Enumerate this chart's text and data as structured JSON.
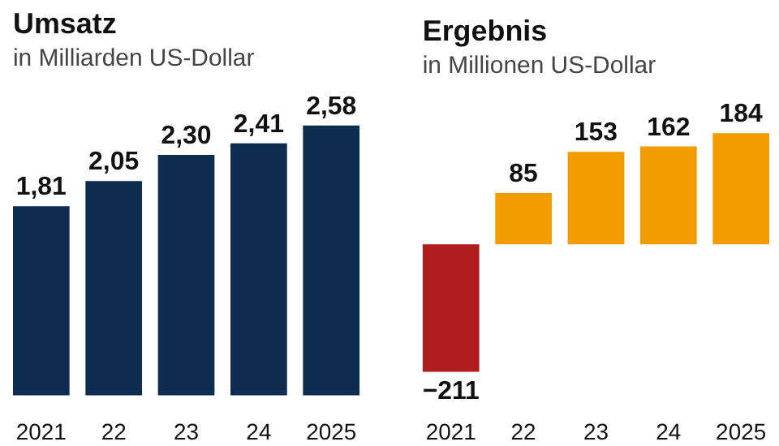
{
  "chart_data": [
    {
      "type": "bar",
      "title": "Umsatz",
      "subtitle": "in Milliarden US-Dollar",
      "categories": [
        "2021",
        "22",
        "23",
        "24",
        "2025"
      ],
      "values": [
        1.81,
        2.05,
        2.3,
        2.41,
        2.58
      ],
      "color": "#0d2c4f",
      "value_labels": [
        "1,81",
        "2,05",
        "2,30",
        "2,41",
        "2,58"
      ],
      "tick_labels": "x",
      "grid": false
    },
    {
      "type": "bar",
      "title": "Ergebnis",
      "subtitle": "in Millionen US-Dollar",
      "categories": [
        "2021",
        "22",
        "23",
        "24",
        "2025"
      ],
      "values": [
        -211,
        85,
        153,
        162,
        184
      ],
      "colors": [
        "#b01c1c",
        "#f29c00",
        "#f29c00",
        "#f29c00",
        "#f29c00"
      ],
      "value_labels": [
        "−211",
        "85",
        "153",
        "162",
        "184"
      ],
      "tick_labels": "x",
      "grid": false
    }
  ]
}
